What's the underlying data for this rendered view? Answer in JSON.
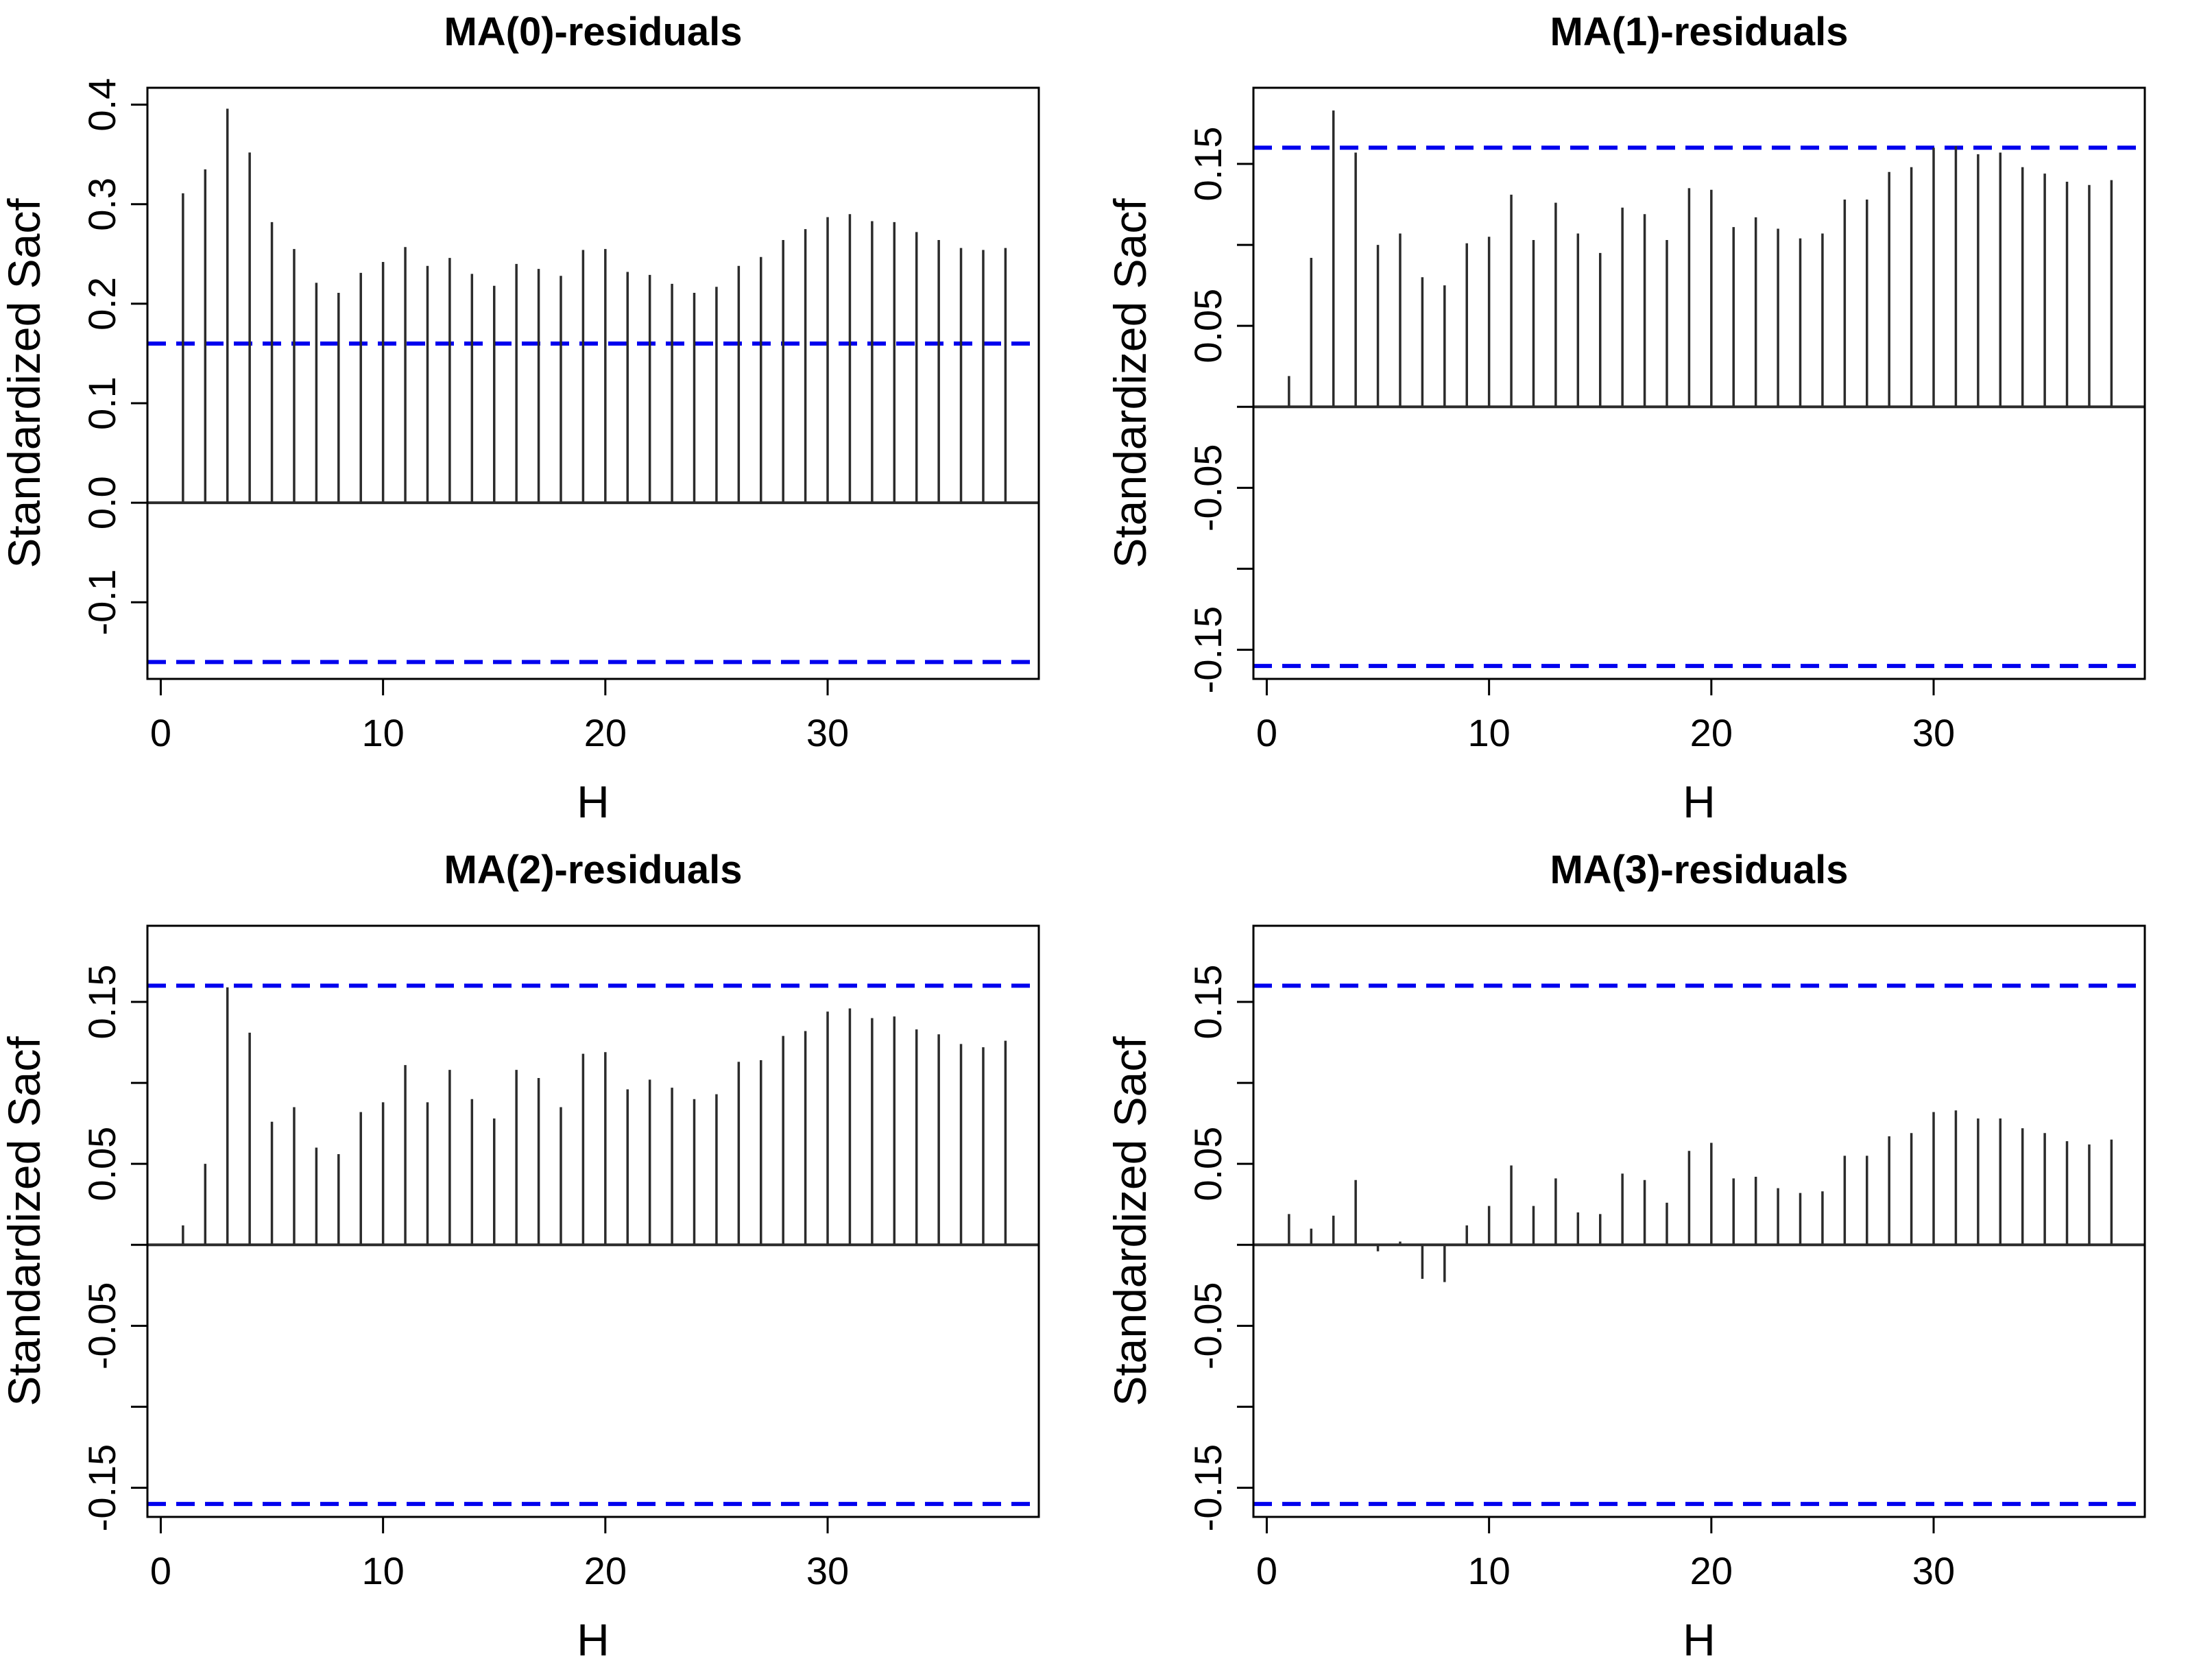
{
  "page": {
    "background": "#ffffff",
    "description": "2x2 grid of standardized sample autocorrelation plots of MA model residuals"
  },
  "style": {
    "stem_color": "#2b2b2b",
    "axis_color": "#000000",
    "conf_line_color": "#0000ee",
    "text_color": "#000000"
  },
  "chart_data": [
    {
      "type": "stem",
      "title": "MA(0)-residuals",
      "xlabel": "H",
      "ylabel": "Standardized Sacf",
      "xlim": [
        -0.6,
        39.5
      ],
      "ylim": [
        -0.177,
        0.417
      ],
      "xticks": [
        0,
        10,
        20,
        30
      ],
      "xtick_labels": [
        "0",
        "10",
        "20",
        "30"
      ],
      "yticks": [
        -0.1,
        0.0,
        0.1,
        0.2,
        0.3,
        0.4
      ],
      "ytick_labels": [
        "-0.1",
        "0.0",
        "0.1",
        "0.2",
        "0.3",
        "0.4"
      ],
      "conf_level_lines": [
        0.16,
        -0.16
      ],
      "grid": false,
      "legend": false,
      "lags": [
        1,
        2,
        3,
        4,
        5,
        6,
        7,
        8,
        9,
        10,
        11,
        12,
        13,
        14,
        15,
        16,
        17,
        18,
        19,
        20,
        21,
        22,
        23,
        24,
        25,
        26,
        27,
        28,
        29,
        30,
        31,
        32,
        33,
        34,
        35,
        36,
        37,
        38
      ],
      "values": [
        0.311,
        0.335,
        0.396,
        0.352,
        0.282,
        0.255,
        0.221,
        0.211,
        0.231,
        0.242,
        0.257,
        0.238,
        0.246,
        0.23,
        0.218,
        0.24,
        0.235,
        0.228,
        0.254,
        0.255,
        0.232,
        0.229,
        0.22,
        0.211,
        0.217,
        0.238,
        0.247,
        0.264,
        0.275,
        0.287,
        0.29,
        0.283,
        0.282,
        0.272,
        0.264,
        0.256,
        0.254,
        0.256
      ]
    },
    {
      "type": "stem",
      "title": "MA(1)-residuals",
      "xlabel": "H",
      "ylabel": "Standardized Sacf",
      "xlim": [
        -0.6,
        39.5
      ],
      "ylim": [
        -0.168,
        0.197
      ],
      "xticks": [
        0,
        10,
        20,
        30
      ],
      "xtick_labels": [
        "0",
        "10",
        "20",
        "30"
      ],
      "yticks": [
        0.15,
        0.1,
        0.05,
        0.0,
        -0.05,
        -0.1,
        -0.15
      ],
      "ytick_labels": [
        "0.15",
        "",
        "0.05",
        "",
        "-0.05",
        "",
        "-0.15"
      ],
      "conf_level_lines": [
        0.16,
        -0.16
      ],
      "grid": false,
      "legend": false,
      "lags": [
        1,
        2,
        3,
        4,
        5,
        6,
        7,
        8,
        9,
        10,
        11,
        12,
        13,
        14,
        15,
        16,
        17,
        18,
        19,
        20,
        21,
        22,
        23,
        24,
        25,
        26,
        27,
        28,
        29,
        30,
        31,
        32,
        33,
        34,
        35,
        36,
        37,
        38
      ],
      "values": [
        0.019,
        0.092,
        0.183,
        0.157,
        0.1,
        0.107,
        0.08,
        0.075,
        0.101,
        0.105,
        0.131,
        0.103,
        0.126,
        0.107,
        0.095,
        0.123,
        0.119,
        0.103,
        0.135,
        0.134,
        0.111,
        0.117,
        0.11,
        0.104,
        0.107,
        0.128,
        0.128,
        0.145,
        0.148,
        0.16,
        0.161,
        0.156,
        0.157,
        0.148,
        0.144,
        0.139,
        0.137,
        0.14
      ]
    },
    {
      "type": "stem",
      "title": "MA(2)-residuals",
      "xlabel": "H",
      "ylabel": "Standardized Sacf",
      "xlim": [
        -0.6,
        39.5
      ],
      "ylim": [
        -0.168,
        0.197
      ],
      "xticks": [
        0,
        10,
        20,
        30
      ],
      "xtick_labels": [
        "0",
        "10",
        "20",
        "30"
      ],
      "yticks": [
        0.15,
        0.1,
        0.05,
        0.0,
        -0.05,
        -0.1,
        -0.15
      ],
      "ytick_labels": [
        "0.15",
        "",
        "0.05",
        "",
        "-0.05",
        "",
        "-0.15"
      ],
      "conf_level_lines": [
        0.16,
        -0.16
      ],
      "grid": false,
      "legend": false,
      "lags": [
        1,
        2,
        3,
        4,
        5,
        6,
        7,
        8,
        9,
        10,
        11,
        12,
        13,
        14,
        15,
        16,
        17,
        18,
        19,
        20,
        21,
        22,
        23,
        24,
        25,
        26,
        27,
        28,
        29,
        30,
        31,
        32,
        33,
        34,
        35,
        36,
        37,
        38
      ],
      "values": [
        0.012,
        0.05,
        0.159,
        0.131,
        0.076,
        0.085,
        0.06,
        0.056,
        0.082,
        0.088,
        0.111,
        0.088,
        0.108,
        0.09,
        0.078,
        0.108,
        0.103,
        0.085,
        0.118,
        0.119,
        0.096,
        0.102,
        0.097,
        0.09,
        0.093,
        0.113,
        0.114,
        0.129,
        0.132,
        0.144,
        0.146,
        0.14,
        0.141,
        0.133,
        0.13,
        0.124,
        0.122,
        0.126
      ]
    },
    {
      "type": "stem",
      "title": "MA(3)-residuals",
      "xlabel": "H",
      "ylabel": "Standardized Sacf",
      "xlim": [
        -0.6,
        39.5
      ],
      "ylim": [
        -0.168,
        0.197
      ],
      "xticks": [
        0,
        10,
        20,
        30
      ],
      "xtick_labels": [
        "0",
        "10",
        "20",
        "30"
      ],
      "yticks": [
        0.15,
        0.1,
        0.05,
        0.0,
        -0.05,
        -0.1,
        -0.15
      ],
      "ytick_labels": [
        "0.15",
        "",
        "0.05",
        "",
        "-0.05",
        "",
        "-0.15"
      ],
      "conf_level_lines": [
        0.16,
        -0.16
      ],
      "grid": false,
      "legend": false,
      "lags": [
        1,
        2,
        3,
        4,
        5,
        6,
        7,
        8,
        9,
        10,
        11,
        12,
        13,
        14,
        15,
        16,
        17,
        18,
        19,
        20,
        21,
        22,
        23,
        24,
        25,
        26,
        27,
        28,
        29,
        30,
        31,
        32,
        33,
        34,
        35,
        36,
        37,
        38
      ],
      "values": [
        0.019,
        0.01,
        0.018,
        0.04,
        -0.004,
        0.002,
        -0.021,
        -0.023,
        0.012,
        0.024,
        0.049,
        0.024,
        0.041,
        0.02,
        0.019,
        0.044,
        0.04,
        0.026,
        0.058,
        0.063,
        0.041,
        0.042,
        0.035,
        0.032,
        0.033,
        0.055,
        0.055,
        0.067,
        0.069,
        0.082,
        0.083,
        0.078,
        0.078,
        0.072,
        0.069,
        0.064,
        0.062,
        0.065
      ]
    }
  ]
}
